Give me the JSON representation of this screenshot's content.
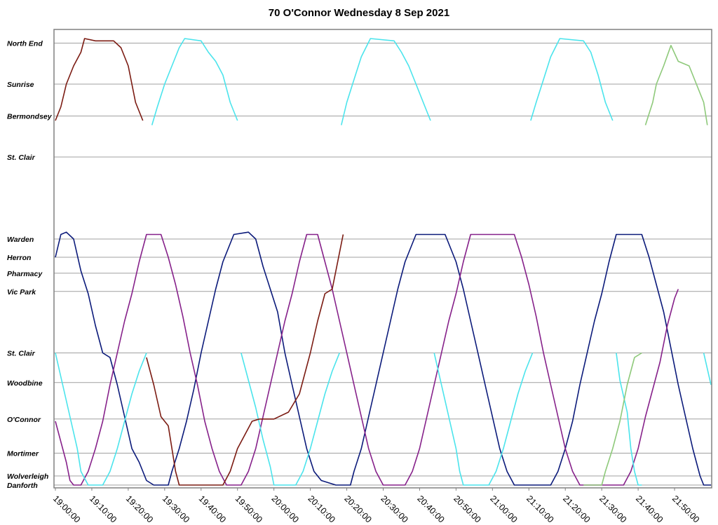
{
  "chart_data": {
    "type": "line",
    "title": "70 O'Connor Wednesday 8 Sep 2021",
    "xlabel": "",
    "ylabel": "",
    "x_unit": "minutes after 19:00:00",
    "xlim": [
      0,
      180
    ],
    "x_ticks": [
      {
        "t": 0,
        "label": "19:00:00"
      },
      {
        "t": 10,
        "label": "19:10:00"
      },
      {
        "t": 20,
        "label": "19:20:00"
      },
      {
        "t": 30,
        "label": "19:30:00"
      },
      {
        "t": 40,
        "label": "19:40:00"
      },
      {
        "t": 50,
        "label": "19:50:00"
      },
      {
        "t": 60,
        "label": "20:00:00"
      },
      {
        "t": 70,
        "label": "20:10:00"
      },
      {
        "t": 80,
        "label": "20:20:00"
      },
      {
        "t": 90,
        "label": "20:30:00"
      },
      {
        "t": 100,
        "label": "20:40:00"
      },
      {
        "t": 110,
        "label": "20:50:00"
      },
      {
        "t": 120,
        "label": "21:00:00"
      },
      {
        "t": 130,
        "label": "21:10:00"
      },
      {
        "t": 140,
        "label": "21:20:00"
      },
      {
        "t": 150,
        "label": "21:30:00"
      },
      {
        "t": 160,
        "label": "21:40:00"
      },
      {
        "t": 170,
        "label": "21:50:00"
      }
    ],
    "y_unit": "stop position (0 = Danforth, top = North End)",
    "ylim": [
      0,
      100
    ],
    "y_ticks": [
      {
        "v": 97,
        "label": "North End"
      },
      {
        "v": 88,
        "label": "Sunrise"
      },
      {
        "v": 81,
        "label": "Bermondsey"
      },
      {
        "v": 72,
        "label": "St. Clair"
      },
      {
        "v": 54,
        "label": "Warden"
      },
      {
        "v": 50,
        "label": "Herron"
      },
      {
        "v": 46.5,
        "label": "Pharmacy"
      },
      {
        "v": 42.5,
        "label": "Vic Park"
      },
      {
        "v": 29,
        "label": "St. Clair"
      },
      {
        "v": 22.5,
        "label": "Woodbine"
      },
      {
        "v": 14.5,
        "label": "O'Connor"
      },
      {
        "v": 7,
        "label": "Mortimer"
      },
      {
        "v": 2,
        "label": "Wolverleigh"
      },
      {
        "v": 0,
        "label": "Danforth"
      }
    ],
    "grid": true,
    "legend": "none",
    "series": [
      {
        "color": "#0b1a7a",
        "points": [
          [
            0,
            50
          ],
          [
            1.5,
            55
          ],
          [
            3,
            55.5
          ],
          [
            5,
            54
          ],
          [
            7,
            47
          ],
          [
            9,
            42
          ],
          [
            11,
            35
          ],
          [
            13,
            29
          ],
          [
            15,
            28
          ],
          [
            17,
            22
          ],
          [
            19,
            15
          ],
          [
            21,
            8
          ],
          [
            23,
            5
          ],
          [
            25,
            1
          ],
          [
            27,
            0
          ],
          [
            31,
            0
          ],
          [
            32,
            3
          ],
          [
            34,
            8
          ],
          [
            36,
            14
          ],
          [
            38,
            21
          ],
          [
            40,
            29
          ],
          [
            42,
            36
          ],
          [
            44,
            43
          ],
          [
            46,
            49
          ],
          [
            49,
            55
          ],
          [
            53,
            55.5
          ],
          [
            55,
            54
          ],
          [
            57,
            48
          ],
          [
            59,
            43
          ],
          [
            61,
            38
          ],
          [
            63,
            29
          ],
          [
            65,
            22
          ],
          [
            67,
            15
          ],
          [
            69,
            8
          ],
          [
            71,
            3
          ],
          [
            73,
            1
          ],
          [
            77,
            0
          ],
          [
            81,
            0
          ],
          [
            82,
            3
          ],
          [
            84,
            8
          ],
          [
            86,
            15
          ],
          [
            88,
            22
          ],
          [
            90,
            29
          ],
          [
            92,
            36
          ],
          [
            94,
            43
          ],
          [
            96,
            49
          ],
          [
            99,
            55
          ],
          [
            107,
            55
          ],
          [
            110,
            49
          ],
          [
            112,
            43
          ],
          [
            114,
            36
          ],
          [
            116,
            29
          ],
          [
            118,
            22
          ],
          [
            120,
            15
          ],
          [
            122,
            8
          ],
          [
            124,
            3
          ],
          [
            126,
            0
          ],
          [
            136,
            0
          ],
          [
            138,
            3
          ],
          [
            140,
            8
          ],
          [
            142,
            14
          ],
          [
            144,
            22
          ],
          [
            146,
            29
          ],
          [
            148,
            36
          ],
          [
            150,
            42
          ],
          [
            152,
            49
          ],
          [
            154,
            55
          ],
          [
            161,
            55
          ],
          [
            163,
            50
          ],
          [
            165,
            44
          ],
          [
            167,
            38
          ],
          [
            169,
            30
          ],
          [
            171,
            22
          ],
          [
            173,
            15
          ],
          [
            175,
            8
          ],
          [
            177,
            2
          ],
          [
            178,
            0
          ],
          [
            180,
            0
          ]
        ]
      },
      {
        "color": "#86218a",
        "points": [
          [
            0,
            14
          ],
          [
            2,
            8
          ],
          [
            3,
            5
          ],
          [
            4,
            1
          ],
          [
            5,
            0
          ],
          [
            7,
            0
          ],
          [
            9,
            3
          ],
          [
            11,
            8
          ],
          [
            13,
            14
          ],
          [
            15,
            22
          ],
          [
            17,
            29
          ],
          [
            19,
            36
          ],
          [
            21,
            42
          ],
          [
            23,
            49
          ],
          [
            25,
            55
          ],
          [
            29,
            55
          ],
          [
            31,
            50
          ],
          [
            33,
            44
          ],
          [
            35,
            37
          ],
          [
            37,
            29
          ],
          [
            39,
            22
          ],
          [
            41,
            14
          ],
          [
            43,
            8
          ],
          [
            45,
            3
          ],
          [
            47,
            0
          ],
          [
            51,
            0
          ],
          [
            53,
            3
          ],
          [
            55,
            8
          ],
          [
            57,
            15
          ],
          [
            59,
            22
          ],
          [
            61,
            29
          ],
          [
            63,
            36
          ],
          [
            65,
            42
          ],
          [
            67,
            49
          ],
          [
            69,
            55
          ],
          [
            72,
            55
          ],
          [
            74,
            49
          ],
          [
            76,
            43
          ],
          [
            78,
            36
          ],
          [
            80,
            29
          ],
          [
            82,
            22
          ],
          [
            84,
            15
          ],
          [
            86,
            8
          ],
          [
            88,
            3
          ],
          [
            90,
            0
          ],
          [
            96,
            0
          ],
          [
            98,
            3
          ],
          [
            100,
            8
          ],
          [
            102,
            15
          ],
          [
            104,
            22
          ],
          [
            106,
            29
          ],
          [
            108,
            36
          ],
          [
            110,
            42
          ],
          [
            112,
            49
          ],
          [
            114,
            55
          ],
          [
            126,
            55
          ],
          [
            128,
            50
          ],
          [
            130,
            44
          ],
          [
            132,
            37
          ],
          [
            134,
            29
          ],
          [
            136,
            22
          ],
          [
            138,
            15
          ],
          [
            140,
            8
          ],
          [
            142,
            3
          ],
          [
            144,
            0
          ],
          [
            156,
            0
          ],
          [
            158,
            3
          ],
          [
            160,
            8
          ],
          [
            162,
            15
          ],
          [
            164,
            21
          ],
          [
            166,
            27
          ],
          [
            168,
            35
          ],
          [
            170,
            41
          ],
          [
            171,
            43
          ]
        ]
      },
      {
        "color": "#4be4ec",
        "points": [
          [
            0,
            29
          ],
          [
            2,
            22
          ],
          [
            4,
            15
          ],
          [
            6,
            8
          ],
          [
            7,
            3
          ],
          [
            9,
            0
          ],
          [
            13,
            0
          ],
          [
            15,
            3
          ],
          [
            17,
            8
          ],
          [
            19,
            14
          ],
          [
            21,
            20
          ],
          [
            23,
            25
          ],
          [
            25,
            29
          ]
        ]
      },
      {
        "color": "#4be4ec",
        "points": [
          [
            26.5,
            79
          ],
          [
            28,
            83
          ],
          [
            30,
            88
          ],
          [
            32,
            92
          ],
          [
            34,
            96
          ],
          [
            35.5,
            98
          ],
          [
            40,
            97.5
          ],
          [
            42,
            95
          ],
          [
            44,
            93
          ],
          [
            46,
            90
          ],
          [
            48,
            84
          ],
          [
            50,
            80
          ]
        ]
      },
      {
        "color": "#4be4ec",
        "points": [
          [
            51,
            29
          ],
          [
            53,
            23
          ],
          [
            55,
            17
          ],
          [
            57,
            10
          ],
          [
            59,
            4
          ],
          [
            60,
            0
          ],
          [
            66,
            0
          ],
          [
            68,
            3
          ],
          [
            70,
            8
          ],
          [
            72,
            14
          ],
          [
            74,
            20
          ],
          [
            76,
            25
          ],
          [
            78,
            29
          ]
        ]
      },
      {
        "color": "#4be4ec",
        "points": [
          [
            78.5,
            79
          ],
          [
            80,
            84
          ],
          [
            82,
            89
          ],
          [
            84,
            94
          ],
          [
            86.5,
            98
          ],
          [
            93,
            97.5
          ],
          [
            95,
            95
          ],
          [
            97,
            92
          ],
          [
            99,
            88
          ],
          [
            101,
            84
          ],
          [
            103,
            80
          ]
        ]
      },
      {
        "color": "#4be4ec",
        "points": [
          [
            104,
            29
          ],
          [
            106,
            22
          ],
          [
            108,
            15
          ],
          [
            110,
            8
          ],
          [
            111,
            3
          ],
          [
            112,
            0
          ],
          [
            119,
            0
          ],
          [
            121,
            3
          ],
          [
            123,
            8
          ],
          [
            125,
            14
          ],
          [
            127,
            20
          ],
          [
            129,
            25
          ],
          [
            131,
            29
          ]
        ]
      },
      {
        "color": "#4be4ec",
        "points": [
          [
            130.5,
            80
          ],
          [
            132,
            84
          ],
          [
            134,
            89
          ],
          [
            136,
            94
          ],
          [
            138.5,
            98
          ],
          [
            145,
            97.5
          ],
          [
            147,
            95
          ],
          [
            149,
            90
          ],
          [
            151,
            84
          ],
          [
            153,
            80
          ]
        ]
      },
      {
        "color": "#4be4ec",
        "points": [
          [
            154,
            29
          ],
          [
            155,
            23
          ],
          [
            157,
            16
          ],
          [
            158,
            8
          ],
          [
            159,
            3
          ],
          [
            160,
            0
          ],
          [
            161,
            0
          ]
        ]
      },
      {
        "color": "#4be4ec",
        "points": [
          [
            178,
            29
          ],
          [
            180,
            22
          ]
        ]
      },
      {
        "color": "#7b1b12",
        "points": [
          [
            0,
            80
          ],
          [
            1.5,
            83
          ],
          [
            3,
            88
          ],
          [
            5,
            92
          ],
          [
            7,
            95
          ],
          [
            8,
            98
          ],
          [
            11,
            97.5
          ],
          [
            16,
            97.5
          ],
          [
            18,
            96
          ],
          [
            20,
            92
          ],
          [
            21,
            88
          ],
          [
            22,
            84
          ],
          [
            23,
            82
          ],
          [
            24,
            80
          ]
        ]
      },
      {
        "color": "#7b1b12",
        "points": [
          [
            25,
            28
          ],
          [
            27,
            22
          ],
          [
            29,
            15
          ],
          [
            31,
            13
          ],
          [
            32,
            8
          ],
          [
            33,
            3
          ],
          [
            34,
            0
          ],
          [
            46,
            0
          ],
          [
            48,
            3
          ],
          [
            50,
            8
          ],
          [
            52,
            11
          ],
          [
            54,
            14
          ],
          [
            56,
            14.5
          ],
          [
            60,
            14.5
          ],
          [
            64,
            16
          ],
          [
            67,
            20
          ],
          [
            70,
            29
          ],
          [
            72,
            36
          ],
          [
            74,
            42
          ],
          [
            76,
            43
          ],
          [
            79,
            55
          ]
        ]
      },
      {
        "color": "#8ec97a",
        "points": [
          [
            162,
            79
          ],
          [
            164,
            84
          ],
          [
            165,
            88
          ],
          [
            167,
            92
          ],
          [
            169,
            96.5
          ],
          [
            171,
            93
          ],
          [
            174,
            92
          ],
          [
            176,
            88
          ],
          [
            178,
            84
          ],
          [
            179,
            79
          ]
        ]
      },
      {
        "color": "#8ec97a",
        "points": [
          [
            145,
            0
          ],
          [
            150,
            0
          ],
          [
            151,
            3
          ],
          [
            153,
            8
          ],
          [
            155,
            14
          ],
          [
            157,
            22
          ],
          [
            159,
            28
          ],
          [
            161,
            29
          ]
        ]
      }
    ]
  }
}
